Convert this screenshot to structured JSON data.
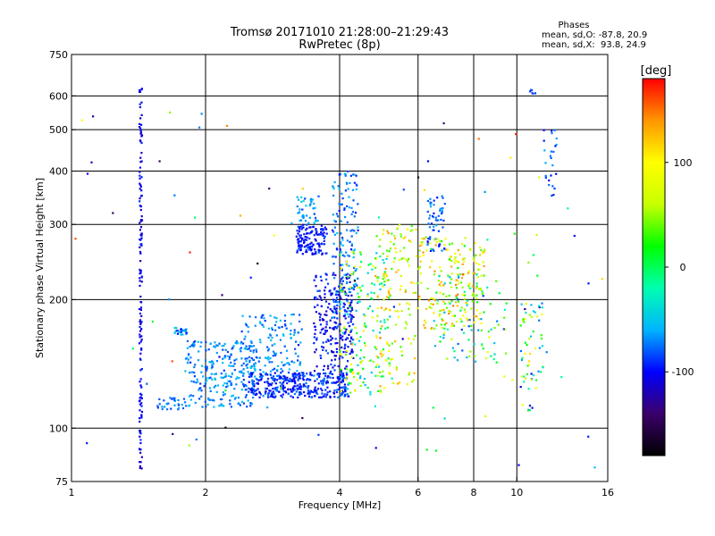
{
  "chart_data": {
    "type": "scatter",
    "title": "Tromsø 20171010 21:28:00–21:29:43",
    "subtitle": "RwPretec (8p)",
    "xlabel": "Frequency [MHz]",
    "ylabel": "Stationary phase Virtual Height [km]",
    "x_scale": "log",
    "y_scale": "log",
    "xlim": [
      1,
      16
    ],
    "ylim": [
      75,
      750
    ],
    "x_ticks": [
      1,
      2,
      4,
      6,
      8,
      10,
      16
    ],
    "y_ticks": [
      75,
      100,
      200,
      300,
      400,
      500,
      600,
      750
    ],
    "grid": true,
    "phases": {
      "heading": "Phases",
      "line_o": "mean, sd,O: -87.8, 20.9",
      "line_x": "mean, sd,X:  93.8, 24.9"
    },
    "colorbar": {
      "label": "[deg]",
      "range": [
        -180,
        180
      ],
      "ticks": [
        100,
        0,
        -100
      ],
      "colors": [
        "#000000",
        "#3b006b",
        "#0000ff",
        "#00b4ff",
        "#00ffb0",
        "#00ff00",
        "#c8ff00",
        "#ffff00",
        "#ff9600",
        "#ff0000"
      ]
    },
    "clusters": [
      {
        "x": [
          1.42,
          1.44
        ],
        "y": [
          80,
          640
        ],
        "phase": [
          -120,
          -90
        ],
        "count": 150
      },
      {
        "x": [
          1.7,
          1.82
        ],
        "y": [
          165,
          172
        ],
        "phase": [
          -100,
          -40
        ],
        "count": 25
      },
      {
        "x": [
          1.55,
          1.8
        ],
        "y": [
          110,
          118
        ],
        "phase": [
          -95,
          -60
        ],
        "count": 30
      },
      {
        "x": [
          1.8,
          2.6
        ],
        "y": [
          112,
          160
        ],
        "phase": [
          -90,
          -50
        ],
        "count": 260
      },
      {
        "x": [
          2.5,
          4.2
        ],
        "y": [
          118,
          135
        ],
        "phase": [
          -110,
          -70
        ],
        "count": 380
      },
      {
        "x": [
          2.4,
          3.3
        ],
        "y": [
          135,
          185
        ],
        "phase": [
          -90,
          -50
        ],
        "count": 140
      },
      {
        "x": [
          3.2,
          3.75
        ],
        "y": [
          255,
          300
        ],
        "phase": [
          -110,
          -80
        ],
        "count": 130
      },
      {
        "x": [
          3.2,
          3.6
        ],
        "y": [
          300,
          350
        ],
        "phase": [
          -90,
          -40
        ],
        "count": 40
      },
      {
        "x": [
          3.5,
          4.3
        ],
        "y": [
          135,
          230
        ],
        "phase": [
          -120,
          -80
        ],
        "count": 240
      },
      {
        "x": [
          3.85,
          4.4
        ],
        "y": [
          180,
          400
        ],
        "phase": [
          -100,
          -50
        ],
        "count": 150
      },
      {
        "x": [
          4.0,
          5.2
        ],
        "y": [
          120,
          260
        ],
        "phase": [
          -60,
          120
        ],
        "count": 190
      },
      {
        "x": [
          4.8,
          6.0
        ],
        "y": [
          125,
          300
        ],
        "phase": [
          30,
          140
        ],
        "count": 130
      },
      {
        "x": [
          6.3,
          6.9
        ],
        "y": [
          260,
          350
        ],
        "phase": [
          -100,
          -60
        ],
        "count": 60
      },
      {
        "x": [
          6.0,
          8.5
        ],
        "y": [
          170,
          280
        ],
        "phase": [
          20,
          150
        ],
        "count": 200
      },
      {
        "x": [
          6.5,
          9.5
        ],
        "y": [
          140,
          230
        ],
        "phase": [
          -90,
          100
        ],
        "count": 90
      },
      {
        "x": [
          10.2,
          11.5
        ],
        "y": [
          110,
          200
        ],
        "phase": [
          -120,
          120
        ],
        "count": 60
      },
      {
        "x": [
          11.5,
          12.3
        ],
        "y": [
          350,
          500
        ],
        "phase": [
          -100,
          -60
        ],
        "count": 25
      },
      {
        "x": [
          10.7,
          11.0
        ],
        "y": [
          600,
          620
        ],
        "phase": [
          -100,
          -60
        ],
        "count": 6
      },
      {
        "x": [
          1.0,
          16.0
        ],
        "y": [
          80,
          600
        ],
        "phase": [
          -180,
          180
        ],
        "count": 90
      }
    ]
  }
}
